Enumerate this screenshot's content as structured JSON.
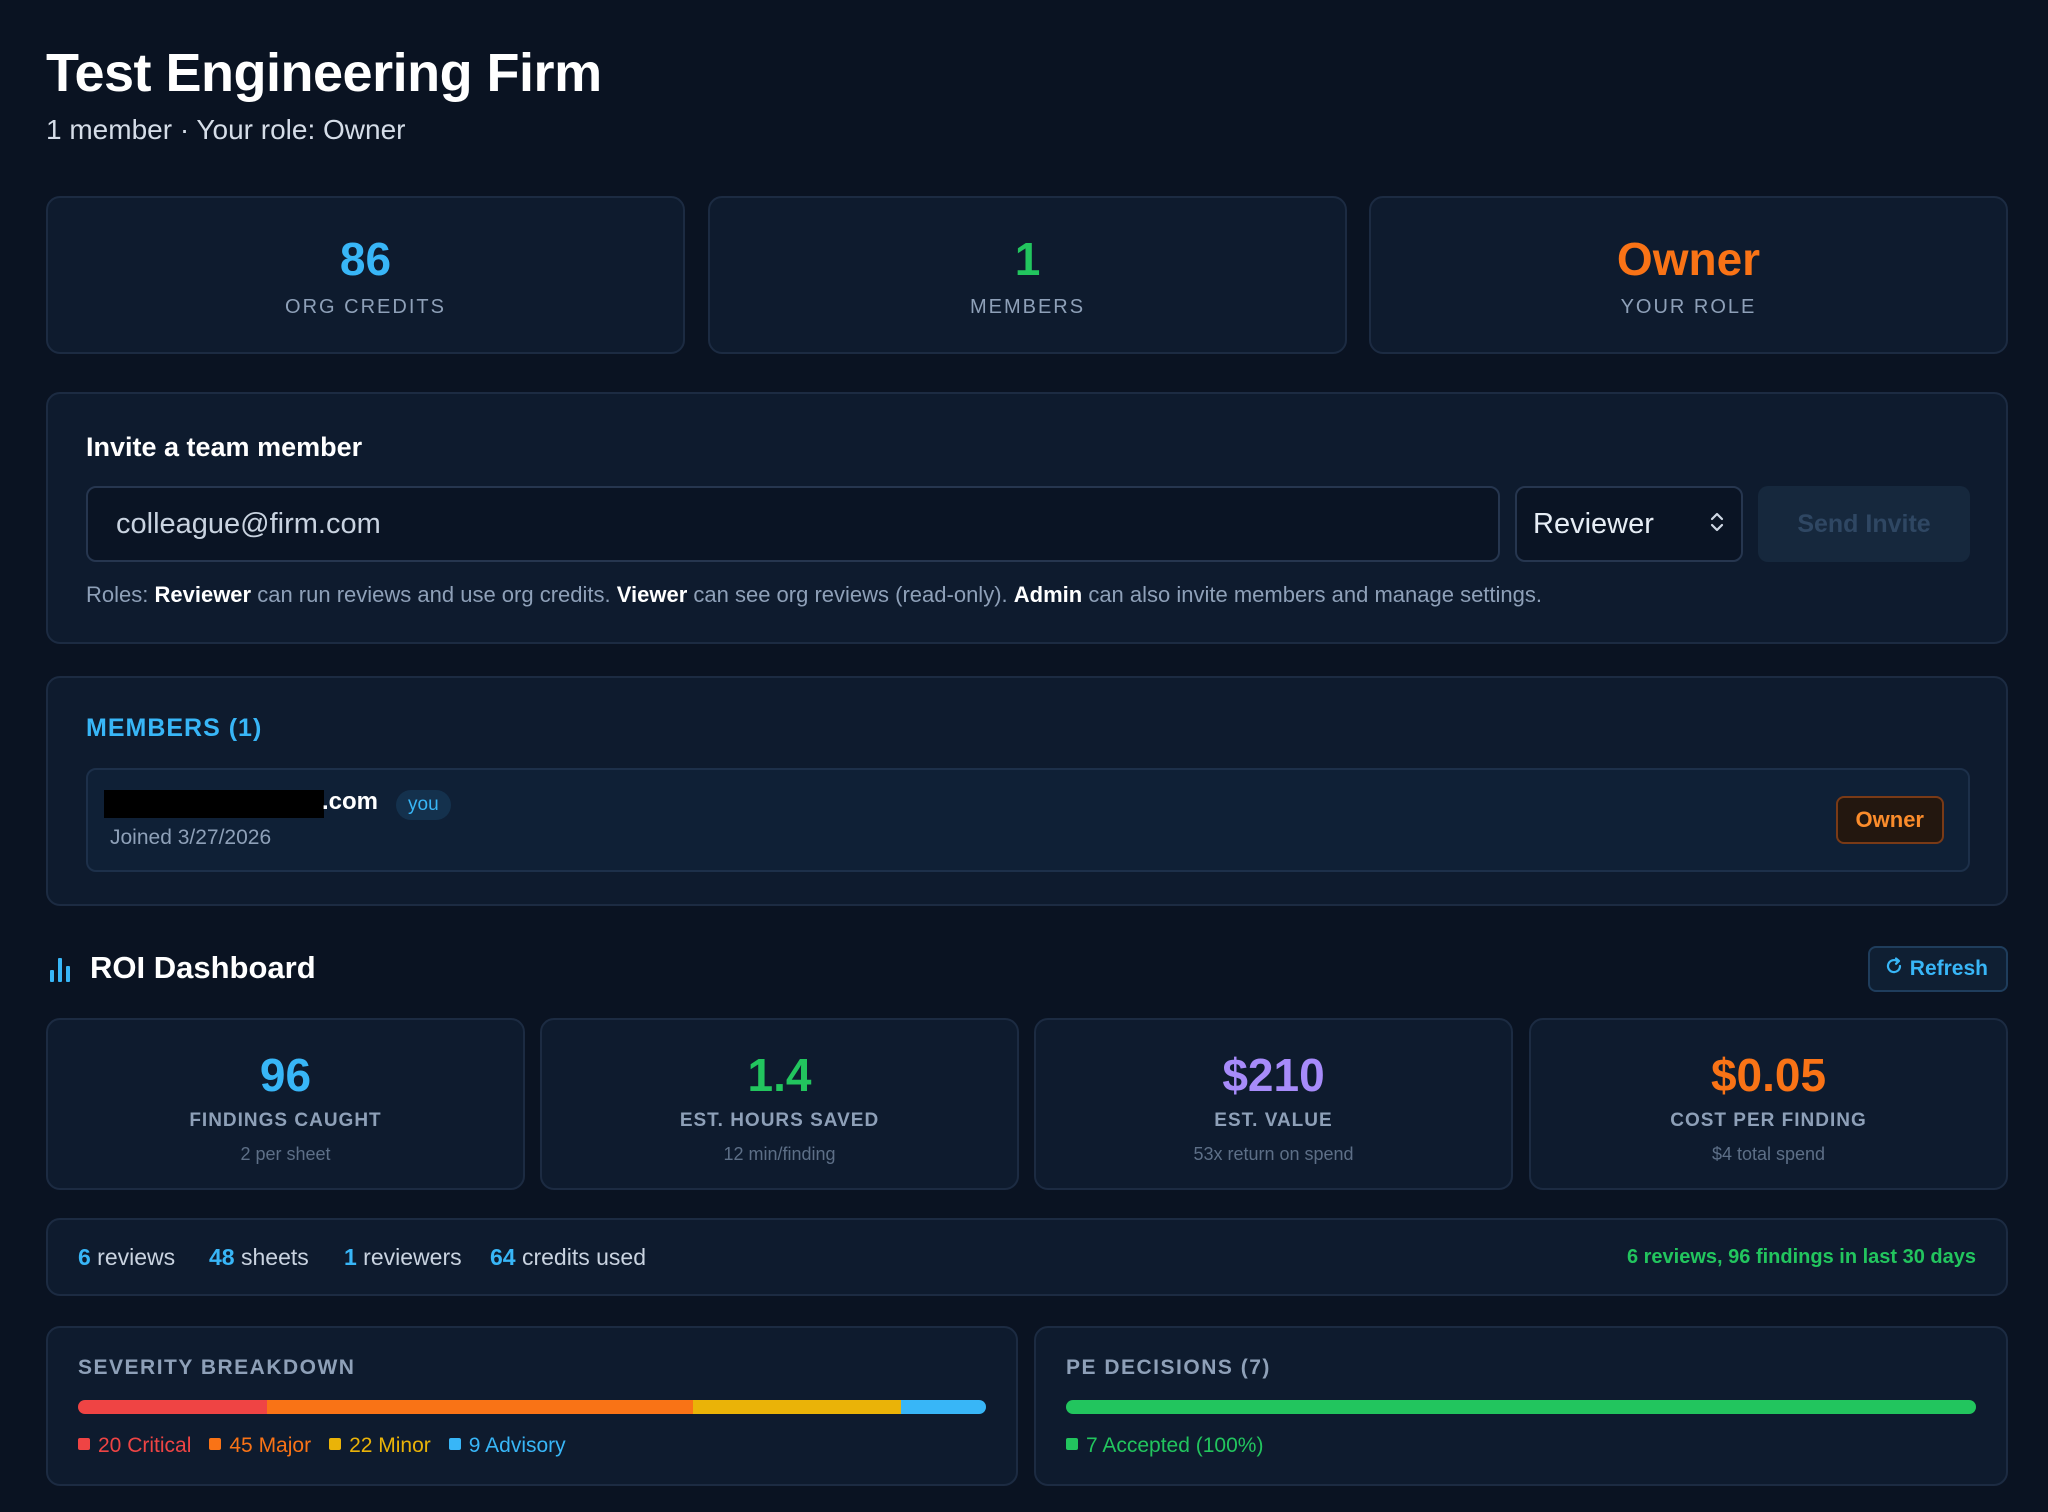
{
  "header": {
    "title": "Test Engineering Firm",
    "subtitle": "1 member · Your role: Owner"
  },
  "stats": [
    {
      "value": "86",
      "label": "ORG CREDITS",
      "color": "#38b6f7"
    },
    {
      "value": "1",
      "label": "MEMBERS",
      "color": "#22c55e"
    },
    {
      "value": "Owner",
      "label": "YOUR ROLE",
      "color": "#f97316"
    }
  ],
  "invite": {
    "title": "Invite a team member",
    "email_placeholder": "colleague@firm.com",
    "role_selected": "Reviewer",
    "send_label": "Send Invite",
    "help_prefix": "Roles: ",
    "help_role1": "Reviewer",
    "help_text1": " can run reviews and use org credits. ",
    "help_role2": "Viewer",
    "help_text2": " can see org reviews (read-only). ",
    "help_role3": "Admin",
    "help_text3": " can also invite members and manage settings."
  },
  "members": {
    "title": "MEMBERS (1)",
    "list": [
      {
        "email_suffix": ".com",
        "you_label": "you",
        "joined": "Joined 3/27/2026",
        "role": "Owner"
      }
    ]
  },
  "roi": {
    "title": "ROI Dashboard",
    "refresh_label": "Refresh",
    "cards": [
      {
        "value": "96",
        "label": "FINDINGS CAUGHT",
        "sub": "2 per sheet",
        "color": "#38b6f7"
      },
      {
        "value": "1.4",
        "label": "EST. HOURS SAVED",
        "sub": "12 min/finding",
        "color": "#22c55e"
      },
      {
        "value": "$210",
        "label": "EST. VALUE",
        "sub": "53x return on spend",
        "color": "#a78bfa"
      },
      {
        "value": "$0.05",
        "label": "COST PER FINDING",
        "sub": "$4 total spend",
        "color": "#f97316"
      }
    ],
    "strip": {
      "reviews_num": "6",
      "reviews_label": " reviews",
      "sheets_num": "48",
      "sheets_label": " sheets",
      "reviewers_num": "1",
      "reviewers_label": " reviewers",
      "credits_num": "64",
      "credits_label": " credits used",
      "recent": "6 reviews, 96 findings in last 30 days"
    }
  },
  "severity": {
    "title": "SEVERITY BREAKDOWN",
    "items": [
      {
        "count": 20,
        "label": "20 Critical",
        "color": "#ef4444"
      },
      {
        "count": 45,
        "label": "45 Major",
        "color": "#f97316"
      },
      {
        "count": 22,
        "label": "22 Minor",
        "color": "#eab308"
      },
      {
        "count": 9,
        "label": "9 Advisory",
        "color": "#38b6f7"
      }
    ]
  },
  "decisions": {
    "title": "PE DECISIONS (7)",
    "items": [
      {
        "count": 7,
        "label": "7 Accepted (100%)",
        "color": "#22c55e"
      }
    ]
  }
}
